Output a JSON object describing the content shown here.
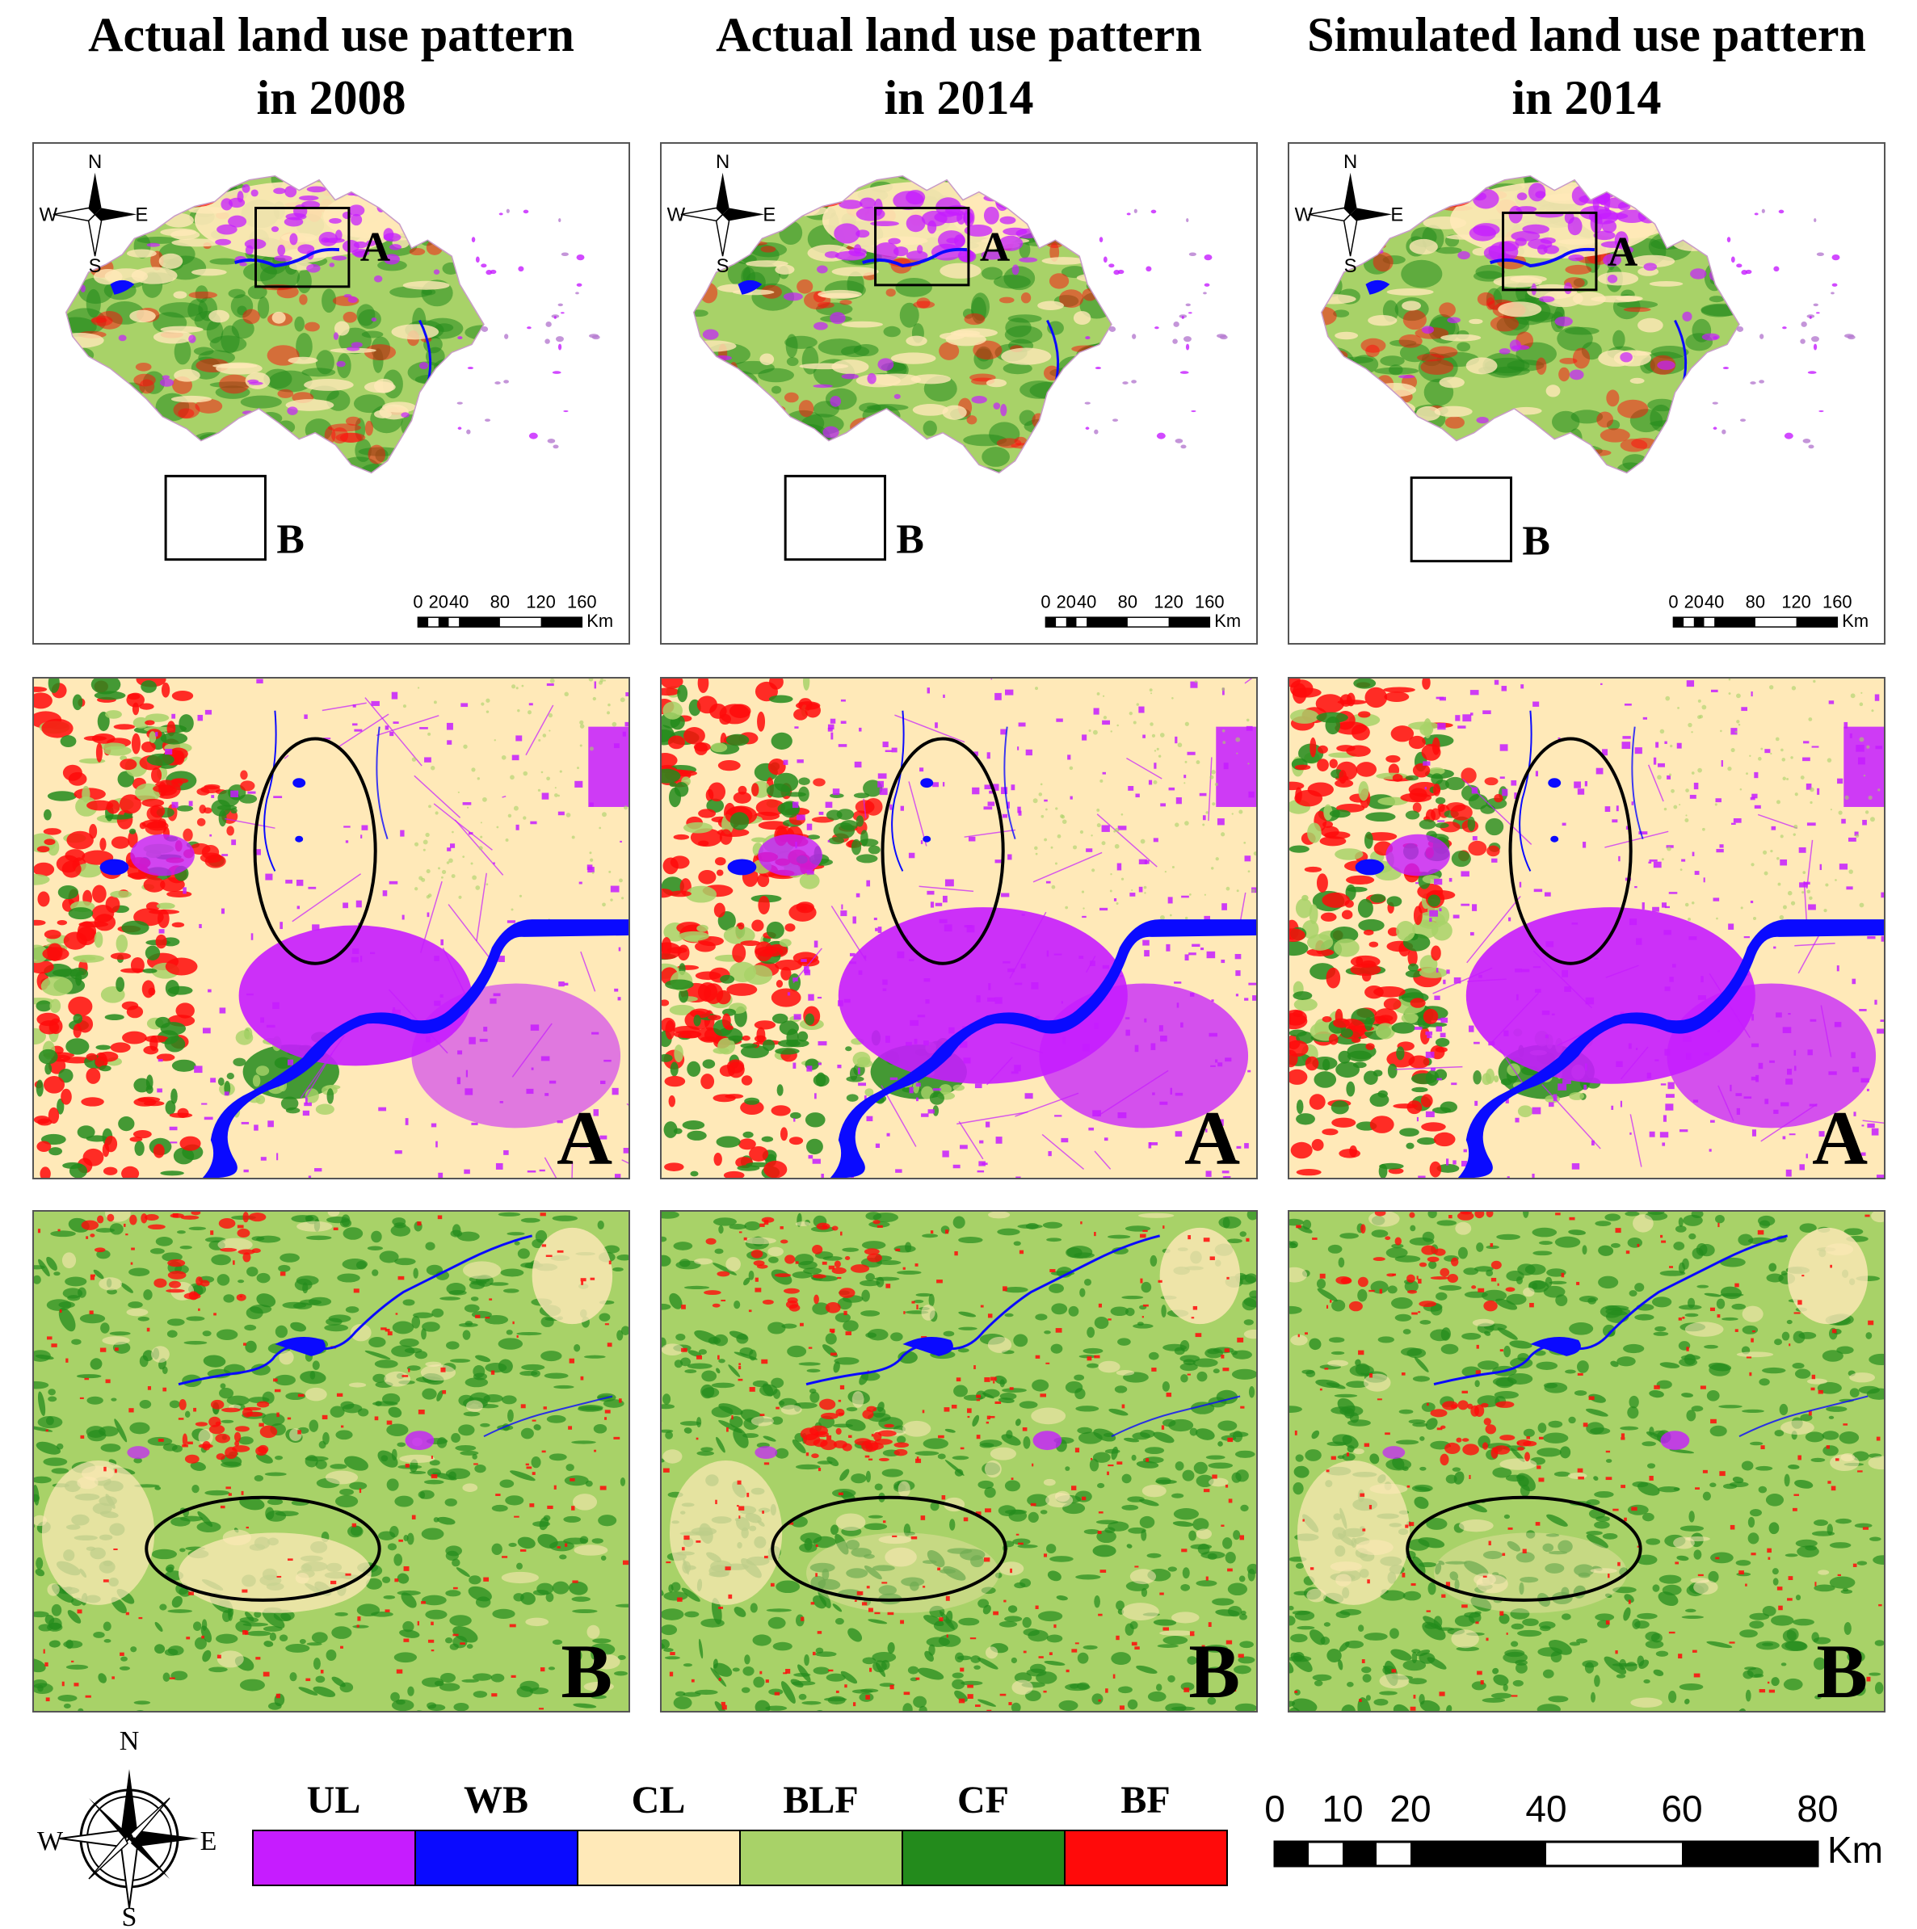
{
  "columns": [
    {
      "title_line1": "Actual land use pattern",
      "title_line2": "in 2008"
    },
    {
      "title_line1": "Actual land use pattern",
      "title_line2": "in 2014"
    },
    {
      "title_line1": "Simulated land use pattern",
      "title_line2": "in 2014"
    }
  ],
  "overview": {
    "compass": {
      "n": "N",
      "s": "S",
      "e": "E",
      "w": "W"
    },
    "inset_labels": {
      "a": "A",
      "b": "B"
    },
    "scale_ticks": [
      "0",
      "20",
      "40",
      "80",
      "120",
      "160"
    ],
    "scale_unit": "Km"
  },
  "zoom_labels": {
    "a": "A",
    "b": "B"
  },
  "legend": {
    "items": [
      {
        "code": "UL",
        "color": "#c61cff"
      },
      {
        "code": "WB",
        "color": "#0a0aff"
      },
      {
        "code": "CL",
        "color": "#ffe9b8"
      },
      {
        "code": "BLF",
        "color": "#a8d268"
      },
      {
        "code": "CF",
        "color": "#238b1c"
      },
      {
        "code": "BF",
        "color": "#ff0a0a"
      }
    ]
  },
  "bottom_compass": {
    "n": "N",
    "s": "S",
    "e": "E",
    "w": "W"
  },
  "bottom_scale": {
    "ticks": [
      "0",
      "10",
      "20",
      "40",
      "60",
      "80"
    ],
    "unit": "Km"
  },
  "colors": {
    "urban": "#c61cff",
    "water": "#0a0aff",
    "cultivated": "#ffe9b8",
    "broadleaf": "#a8d268",
    "conifer": "#238b1c",
    "bamboo": "#ff0a0a"
  }
}
